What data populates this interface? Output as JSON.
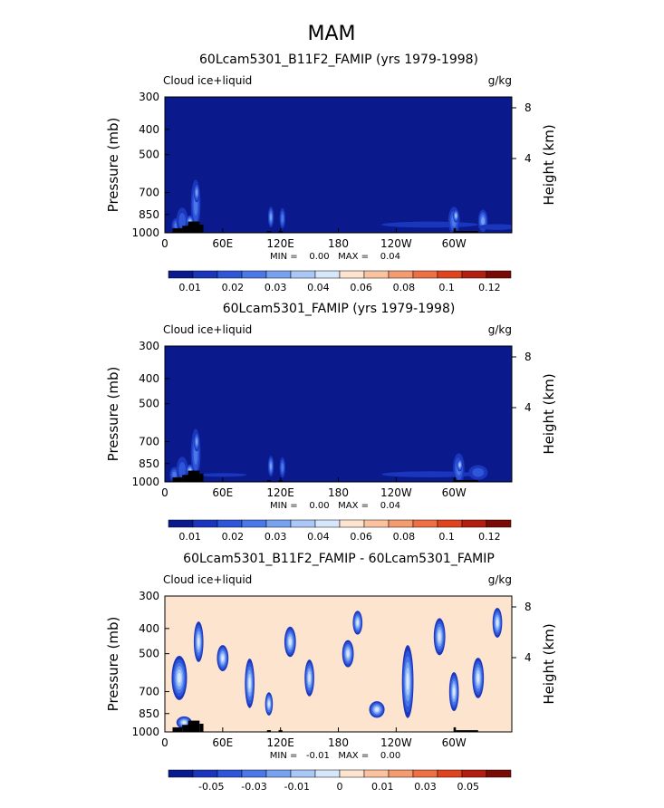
{
  "page_title": "MAM",
  "chart_data": [
    {
      "type": "heatmap",
      "title": "60Lcam5301_B11F2_FAMIP (yrs 1979-1998)",
      "left_label": "Cloud ice+liquid",
      "right_label": "g/kg",
      "ylabel": "Pressure (mb)",
      "ylabel_right": "Height (km)",
      "x_ticks": [
        "0",
        "60E",
        "120E",
        "180",
        "120W",
        "60W"
      ],
      "y_ticks": [
        "300",
        "400",
        "500",
        "700",
        "850",
        "1000"
      ],
      "y_ticks_right": [
        "8",
        "4"
      ],
      "min_max_label": "MIN =    0.00   MAX =    0.04",
      "colorbar_labels": [
        "0.01",
        "0.02",
        "0.03",
        "0.04",
        "0.06",
        "0.08",
        "0.1",
        "0.12"
      ],
      "colorbar_colors": [
        "#0a1a8c",
        "#1a36bd",
        "#2f55d8",
        "#4a78e8",
        "#78a2f0",
        "#a9c7f7",
        "#d6e6fb",
        "#fde4cf",
        "#fbc2a0",
        "#f59b70",
        "#ef6f45",
        "#e0441f",
        "#b21e10",
        "#7a0a05"
      ],
      "field": {
        "background": "#0a1a8c",
        "features": [
          {
            "lon": 12,
            "p": 940,
            "dlon": 5,
            "dp": 70,
            "level": 3
          },
          {
            "lon": 18,
            "p": 900,
            "dlon": 6,
            "dp": 110,
            "level": 2
          },
          {
            "lon": 32,
            "p": 780,
            "dlon": 5,
            "dp": 170,
            "level": 3
          },
          {
            "lon": 33,
            "p": 700,
            "dlon": 3,
            "dp": 60,
            "level": 4
          },
          {
            "lon": 26,
            "p": 905,
            "dlon": 4,
            "dp": 50,
            "level": 5
          },
          {
            "lon": 110,
            "p": 870,
            "dlon": 3,
            "dp": 80,
            "level": 4
          },
          {
            "lon": 122,
            "p": 880,
            "dlon": 3,
            "dp": 80,
            "level": 3
          },
          {
            "lon": 275,
            "p": 930,
            "dlon": 50,
            "dp": 25,
            "level": 1
          },
          {
            "lon": 300,
            "p": 900,
            "dlon": 6,
            "dp": 120,
            "level": 3
          },
          {
            "lon": 302,
            "p": 860,
            "dlon": 3,
            "dp": 50,
            "level": 5
          },
          {
            "lon": 330,
            "p": 900,
            "dlon": 5,
            "dp": 90,
            "level": 4
          },
          {
            "lon": 345,
            "p": 950,
            "dlon": 20,
            "dp": 25,
            "level": 1
          }
        ]
      },
      "terrain": [
        {
          "lon0": 8,
          "lon1": 18,
          "p": 960
        },
        {
          "lon0": 18,
          "lon1": 24,
          "p": 940
        },
        {
          "lon0": 24,
          "lon1": 36,
          "p": 905
        },
        {
          "lon0": 36,
          "lon1": 40,
          "p": 930
        },
        {
          "lon0": 106,
          "lon1": 110,
          "p": 985
        },
        {
          "lon0": 118,
          "lon1": 122,
          "p": 985
        },
        {
          "lon0": 300,
          "lon1": 302,
          "p": 960
        },
        {
          "lon0": 302,
          "lon1": 325,
          "p": 985
        }
      ]
    },
    {
      "type": "heatmap",
      "title": "60Lcam5301_FAMIP (yrs 1979-1998)",
      "left_label": "Cloud ice+liquid",
      "right_label": "g/kg",
      "ylabel": "Pressure (mb)",
      "ylabel_right": "Height (km)",
      "x_ticks": [
        "0",
        "60E",
        "120E",
        "180",
        "120W",
        "60W"
      ],
      "y_ticks": [
        "300",
        "400",
        "500",
        "700",
        "850",
        "1000"
      ],
      "y_ticks_right": [
        "8",
        "4"
      ],
      "min_max_label": "MIN =    0.00   MAX =    0.04",
      "colorbar_labels": [
        "0.01",
        "0.02",
        "0.03",
        "0.04",
        "0.06",
        "0.08",
        "0.1",
        "0.12"
      ],
      "colorbar_colors": [
        "#0a1a8c",
        "#1a36bd",
        "#2f55d8",
        "#4a78e8",
        "#78a2f0",
        "#a9c7f7",
        "#d6e6fb",
        "#fde4cf",
        "#fbc2a0",
        "#f59b70",
        "#ef6f45",
        "#e0441f",
        "#b21e10",
        "#7a0a05"
      ],
      "field": {
        "background": "#0a1a8c",
        "features": [
          {
            "lon": 10,
            "p": 940,
            "dlon": 5,
            "dp": 70,
            "level": 3
          },
          {
            "lon": 18,
            "p": 900,
            "dlon": 6,
            "dp": 110,
            "level": 2
          },
          {
            "lon": 32,
            "p": 780,
            "dlon": 5,
            "dp": 170,
            "level": 3
          },
          {
            "lon": 33,
            "p": 700,
            "dlon": 3,
            "dp": 60,
            "level": 4
          },
          {
            "lon": 26,
            "p": 905,
            "dlon": 4,
            "dp": 50,
            "level": 5
          },
          {
            "lon": 60,
            "p": 940,
            "dlon": 25,
            "dp": 15,
            "level": 1
          },
          {
            "lon": 110,
            "p": 870,
            "dlon": 3,
            "dp": 80,
            "level": 4
          },
          {
            "lon": 122,
            "p": 880,
            "dlon": 3,
            "dp": 80,
            "level": 3
          },
          {
            "lon": 275,
            "p": 935,
            "dlon": 50,
            "dp": 25,
            "level": 1
          },
          {
            "lon": 305,
            "p": 890,
            "dlon": 6,
            "dp": 130,
            "level": 3
          },
          {
            "lon": 306,
            "p": 860,
            "dlon": 3,
            "dp": 50,
            "level": 5
          },
          {
            "lon": 325,
            "p": 920,
            "dlon": 10,
            "dp": 60,
            "level": 2
          }
        ]
      },
      "terrain": [
        {
          "lon0": 8,
          "lon1": 18,
          "p": 960
        },
        {
          "lon0": 18,
          "lon1": 24,
          "p": 940
        },
        {
          "lon0": 24,
          "lon1": 36,
          "p": 905
        },
        {
          "lon0": 36,
          "lon1": 40,
          "p": 930
        },
        {
          "lon0": 106,
          "lon1": 110,
          "p": 985
        },
        {
          "lon0": 118,
          "lon1": 122,
          "p": 985
        },
        {
          "lon0": 300,
          "lon1": 302,
          "p": 960
        },
        {
          "lon0": 302,
          "lon1": 325,
          "p": 985
        }
      ]
    },
    {
      "type": "heatmap",
      "title": "60Lcam5301_B11F2_FAMIP - 60Lcam5301_FAMIP",
      "left_label": "Cloud ice+liquid",
      "right_label": "g/kg",
      "ylabel": "Pressure (mb)",
      "ylabel_right": "Height (km)",
      "x_ticks": [
        "0",
        "60E",
        "120E",
        "180",
        "120W",
        "60W"
      ],
      "y_ticks": [
        "300",
        "400",
        "500",
        "700",
        "850",
        "1000"
      ],
      "y_ticks_right": [
        "8",
        "4"
      ],
      "min_max_label": "MIN =   -0.01   MAX =    0.00",
      "colorbar_labels": [
        "-0.05",
        "-0.03",
        "-0.01",
        "0",
        "0.01",
        "0.03",
        "0.05"
      ],
      "colorbar_colors": [
        "#0a1a8c",
        "#1a36bd",
        "#2f55d8",
        "#4a78e8",
        "#78a2f0",
        "#a9c7f7",
        "#d6e6fb",
        "#fde4cf",
        "#fbc2a0",
        "#f59b70",
        "#ef6f45",
        "#e0441f",
        "#b21e10",
        "#7a0a05"
      ],
      "field": {
        "background": "#fde4cf",
        "features": [
          {
            "lon": 15,
            "p": 620,
            "dlon": 8,
            "dp": 120,
            "level": 6
          },
          {
            "lon": 35,
            "p": 450,
            "dlon": 5,
            "dp": 80,
            "level": 6
          },
          {
            "lon": 60,
            "p": 520,
            "dlon": 6,
            "dp": 60,
            "level": 6
          },
          {
            "lon": 88,
            "p": 650,
            "dlon": 5,
            "dp": 140,
            "level": 6
          },
          {
            "lon": 108,
            "p": 780,
            "dlon": 4,
            "dp": 80,
            "level": 6
          },
          {
            "lon": 130,
            "p": 450,
            "dlon": 6,
            "dp": 60,
            "level": 6
          },
          {
            "lon": 150,
            "p": 620,
            "dlon": 5,
            "dp": 100,
            "level": 6
          },
          {
            "lon": 190,
            "p": 500,
            "dlon": 6,
            "dp": 60,
            "level": 6
          },
          {
            "lon": 200,
            "p": 380,
            "dlon": 5,
            "dp": 40,
            "level": 6
          },
          {
            "lon": 220,
            "p": 820,
            "dlon": 8,
            "dp": 60,
            "level": 6
          },
          {
            "lon": 252,
            "p": 640,
            "dlon": 6,
            "dp": 200,
            "level": 6
          },
          {
            "lon": 285,
            "p": 430,
            "dlon": 6,
            "dp": 70,
            "level": 6
          },
          {
            "lon": 300,
            "p": 700,
            "dlon": 5,
            "dp": 120,
            "level": 6
          },
          {
            "lon": 325,
            "p": 620,
            "dlon": 6,
            "dp": 110,
            "level": 6
          },
          {
            "lon": 345,
            "p": 380,
            "dlon": 5,
            "dp": 50,
            "level": 6
          },
          {
            "lon": 20,
            "p": 920,
            "dlon": 8,
            "dp": 50,
            "level": 6
          }
        ]
      },
      "terrain": [
        {
          "lon0": 8,
          "lon1": 18,
          "p": 960
        },
        {
          "lon0": 18,
          "lon1": 24,
          "p": 940
        },
        {
          "lon0": 24,
          "lon1": 36,
          "p": 905
        },
        {
          "lon0": 36,
          "lon1": 40,
          "p": 930
        },
        {
          "lon0": 106,
          "lon1": 110,
          "p": 985
        },
        {
          "lon0": 118,
          "lon1": 122,
          "p": 985
        },
        {
          "lon0": 300,
          "lon1": 302,
          "p": 960
        },
        {
          "lon0": 302,
          "lon1": 325,
          "p": 985
        }
      ]
    }
  ]
}
